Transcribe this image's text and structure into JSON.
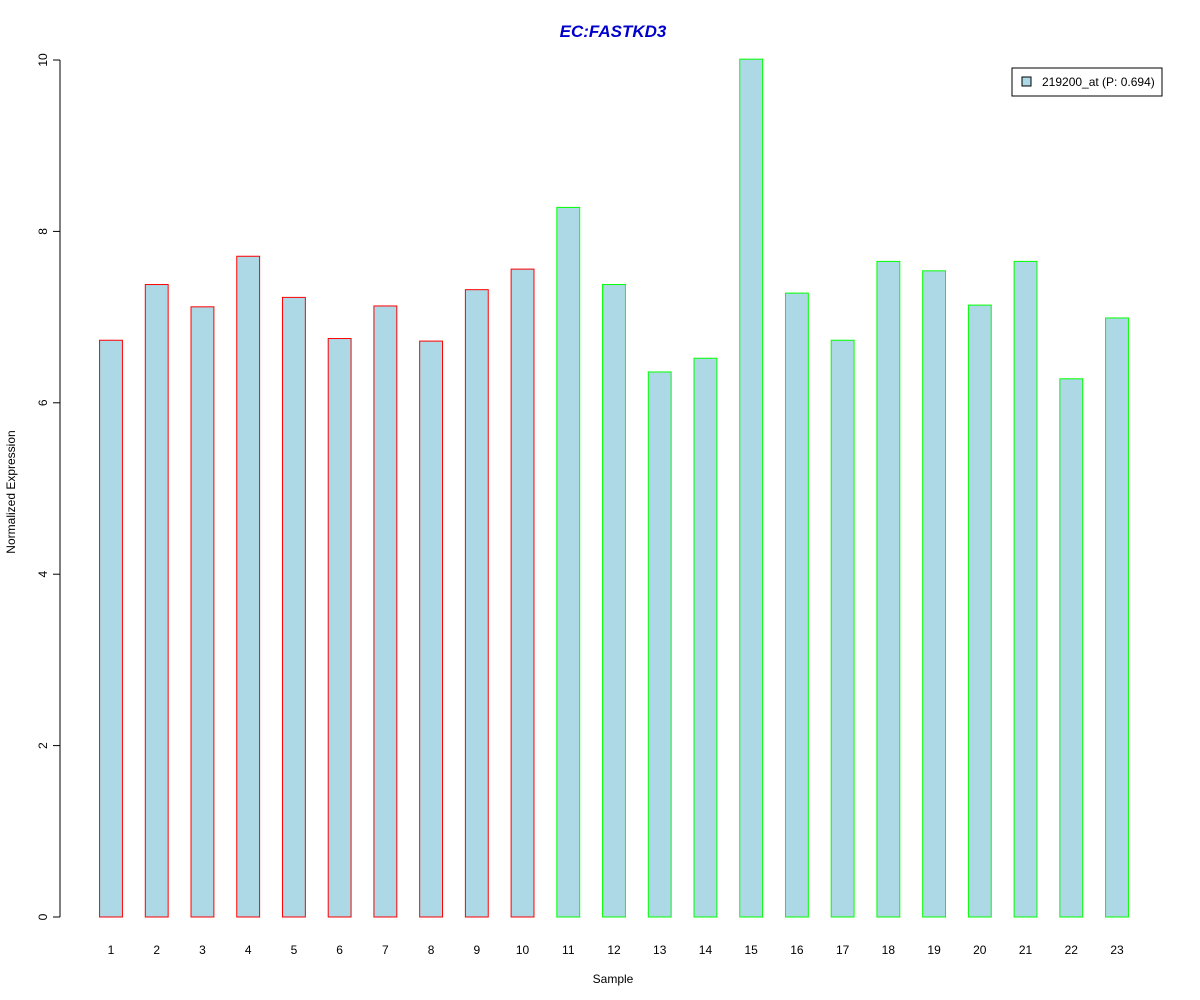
{
  "chart_data": {
    "type": "bar",
    "title": "EC:FASTKD3",
    "xlabel": "Sample",
    "ylabel": "Normalized Expression",
    "ylim": [
      0,
      10
    ],
    "yticks": [
      0,
      2,
      4,
      6,
      8,
      10
    ],
    "categories": [
      "1",
      "2",
      "3",
      "4",
      "5",
      "6",
      "7",
      "8",
      "9",
      "10",
      "11",
      "12",
      "13",
      "14",
      "15",
      "16",
      "17",
      "18",
      "19",
      "20",
      "21",
      "22",
      "23"
    ],
    "series": [
      {
        "name": "219200_at (P: 0.694)",
        "values": [
          6.73,
          7.38,
          7.12,
          7.71,
          7.23,
          6.75,
          7.13,
          6.72,
          7.32,
          7.56,
          8.28,
          7.38,
          6.36,
          6.52,
          10.01,
          7.28,
          6.73,
          7.65,
          7.54,
          7.14,
          7.65,
          6.28,
          6.99
        ],
        "groups": [
          "red",
          "red",
          "red",
          "red",
          "red",
          "red",
          "red",
          "red",
          "red",
          "red",
          "green",
          "green",
          "green",
          "green",
          "green",
          "green",
          "green",
          "green",
          "green",
          "green",
          "green",
          "green",
          "green"
        ]
      }
    ],
    "colors": {
      "bar_fill": "#ADD8E6",
      "group_red": "#FF0000",
      "group_green": "#00FF00",
      "title": "#0000CD"
    },
    "legend": {
      "position": "top-right",
      "label": "219200_at (P: 0.694)"
    },
    "grid": false
  }
}
